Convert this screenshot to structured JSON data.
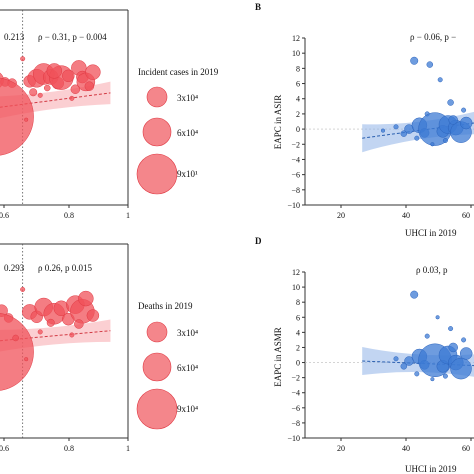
{
  "panel_labels": {
    "B": "B",
    "D": "D"
  },
  "chart_data": [
    {
      "id": "A",
      "type": "scatter",
      "annotation_left": "0.213",
      "annotation_right": "ρ − 0.31, p − 0.004",
      "x_ticks": [
        "0.6",
        "0.8",
        "1"
      ],
      "xlim": [
        0.55,
        1.0
      ],
      "ylim": [
        -20,
        12
      ],
      "vline_x": 0.7,
      "legend": {
        "title": "Incident cases in 2019",
        "items": [
          "3x10⁴",
          "6x10⁴",
          "9x10¹"
        ]
      },
      "trend": {
        "x": [
          0.55,
          0.95
        ],
        "y": [
          -4.6,
          -1.6
        ]
      },
      "points": [
        {
          "x": 0.58,
          "y": -0.5,
          "s": 0.3
        },
        {
          "x": 0.62,
          "y": 0.5,
          "s": 0.6
        },
        {
          "x": 0.6,
          "y": 1.2,
          "s": 0.4
        },
        {
          "x": 0.65,
          "y": 0.2,
          "s": 0.3
        },
        {
          "x": 0.72,
          "y": 0.3,
          "s": 0.4
        },
        {
          "x": 0.74,
          "y": 0.8,
          "s": 0.6
        },
        {
          "x": 0.76,
          "y": 1.5,
          "s": 0.7
        },
        {
          "x": 0.78,
          "y": 1.0,
          "s": 0.5
        },
        {
          "x": 0.8,
          "y": 0.0,
          "s": 0.4
        },
        {
          "x": 0.81,
          "y": 0.9,
          "s": 0.8
        },
        {
          "x": 0.79,
          "y": 2.0,
          "s": 0.5
        },
        {
          "x": 0.83,
          "y": 1.2,
          "s": 0.4
        },
        {
          "x": 0.86,
          "y": 2.5,
          "s": 0.5
        },
        {
          "x": 0.87,
          "y": 1.0,
          "s": 0.4
        },
        {
          "x": 0.88,
          "y": 0.2,
          "s": 0.6
        },
        {
          "x": 0.89,
          "y": -0.5,
          "s": 0.3
        },
        {
          "x": 0.9,
          "y": 1.8,
          "s": 0.5
        },
        {
          "x": 0.85,
          "y": -1.0,
          "s": 0.3
        },
        {
          "x": 0.77,
          "y": -0.8,
          "s": 0.2
        },
        {
          "x": 0.73,
          "y": -1.5,
          "s": 0.25
        },
        {
          "x": 0.7,
          "y": 4.0,
          "s": 0.15
        },
        {
          "x": 0.67,
          "y": 0.0,
          "s": 0.3
        },
        {
          "x": 0.6,
          "y": -3.5,
          "s": 0.2
        },
        {
          "x": 0.62,
          "y": -5.5,
          "s": 2.6
        },
        {
          "x": 0.75,
          "y": -2.0,
          "s": 0.15
        },
        {
          "x": 0.84,
          "y": -2.5,
          "s": 0.15
        },
        {
          "x": 0.71,
          "y": -6.0,
          "s": 0.12
        }
      ]
    },
    {
      "id": "B",
      "type": "scatter",
      "annotation_right": "ρ − 0.06, p −",
      "xlabel": "UHCI in 2019",
      "ylabel": "EAPC in ASIR",
      "x_ticks": [
        "20",
        "40",
        "60"
      ],
      "y_ticks": [
        "12",
        "10",
        "8",
        "6",
        "4",
        "2",
        "0",
        "−2",
        "−4",
        "−6",
        "−8",
        "−10"
      ],
      "xlim": [
        0,
        65
      ],
      "ylim": [
        -10,
        12
      ],
      "trend": {
        "x": [
          22,
          65
        ],
        "y": [
          -1.2,
          0.8
        ]
      },
      "points": [
        {
          "x": 42,
          "y": 9.0,
          "s": 0.25
        },
        {
          "x": 48,
          "y": 8.5,
          "s": 0.2
        },
        {
          "x": 52,
          "y": 6.5,
          "s": 0.15
        },
        {
          "x": 56,
          "y": 3.5,
          "s": 0.2
        },
        {
          "x": 47,
          "y": 2.0,
          "s": 0.15
        },
        {
          "x": 40,
          "y": 0.0,
          "s": 0.3
        },
        {
          "x": 44,
          "y": 0.5,
          "s": 0.5
        },
        {
          "x": 46,
          "y": -0.5,
          "s": 0.3
        },
        {
          "x": 50,
          "y": 0.0,
          "s": 1.1
        },
        {
          "x": 53,
          "y": -0.3,
          "s": 0.4
        },
        {
          "x": 55,
          "y": 0.6,
          "s": 0.6
        },
        {
          "x": 58,
          "y": 0.2,
          "s": 0.5
        },
        {
          "x": 60,
          "y": -0.4,
          "s": 0.7
        },
        {
          "x": 62,
          "y": 0.8,
          "s": 0.4
        },
        {
          "x": 57,
          "y": 1.2,
          "s": 0.3
        },
        {
          "x": 38,
          "y": -0.6,
          "s": 0.2
        },
        {
          "x": 43,
          "y": -1.2,
          "s": 0.15
        },
        {
          "x": 49,
          "y": -2.0,
          "s": 0.12
        },
        {
          "x": 54,
          "y": -1.5,
          "s": 0.15
        },
        {
          "x": 61,
          "y": 2.5,
          "s": 0.15
        },
        {
          "x": 35,
          "y": 0.3,
          "s": 0.15
        },
        {
          "x": 30,
          "y": -0.2,
          "s": 0.12
        }
      ]
    },
    {
      "id": "C",
      "type": "scatter",
      "annotation_left": "0.293",
      "annotation_right": "ρ   0.26, p   0.015",
      "x_ticks": [
        "0.6",
        "0.8",
        "1"
      ],
      "xlim": [
        0.55,
        1.0
      ],
      "ylim": [
        -20,
        12
      ],
      "vline_x": 0.7,
      "legend": {
        "title": "Deaths in 2019",
        "items": [
          "3x10⁴",
          "6x10⁴",
          "9x10⁴"
        ]
      },
      "trend": {
        "x": [
          0.55,
          0.95
        ],
        "y": [
          -4.4,
          -2.3
        ]
      },
      "points": [
        {
          "x": 0.58,
          "y": -0.8,
          "s": 0.3
        },
        {
          "x": 0.61,
          "y": 0.3,
          "s": 0.5
        },
        {
          "x": 0.64,
          "y": 1.0,
          "s": 0.4
        },
        {
          "x": 0.66,
          "y": -0.2,
          "s": 0.3
        },
        {
          "x": 0.72,
          "y": 0.8,
          "s": 0.5
        },
        {
          "x": 0.74,
          "y": 0.0,
          "s": 0.4
        },
        {
          "x": 0.76,
          "y": 1.6,
          "s": 0.6
        },
        {
          "x": 0.79,
          "y": 0.5,
          "s": 0.7
        },
        {
          "x": 0.81,
          "y": 1.4,
          "s": 0.5
        },
        {
          "x": 0.83,
          "y": -0.4,
          "s": 0.4
        },
        {
          "x": 0.85,
          "y": 2.0,
          "s": 0.6
        },
        {
          "x": 0.87,
          "y": 0.9,
          "s": 0.8
        },
        {
          "x": 0.88,
          "y": 3.0,
          "s": 0.5
        },
        {
          "x": 0.9,
          "y": 0.2,
          "s": 0.4
        },
        {
          "x": 0.86,
          "y": -1.2,
          "s": 0.3
        },
        {
          "x": 0.78,
          "y": -1.0,
          "s": 0.25
        },
        {
          "x": 0.7,
          "y": 4.5,
          "s": 0.15
        },
        {
          "x": 0.6,
          "y": 2.0,
          "s": 0.2
        },
        {
          "x": 0.62,
          "y": -5.8,
          "s": 2.6
        },
        {
          "x": 0.75,
          "y": -2.5,
          "s": 0.15
        },
        {
          "x": 0.84,
          "y": -3.0,
          "s": 0.15
        },
        {
          "x": 0.68,
          "y": -3.5,
          "s": 0.2
        },
        {
          "x": 0.71,
          "y": -7.0,
          "s": 0.12
        }
      ]
    },
    {
      "id": "D",
      "type": "scatter",
      "annotation_right": "ρ   0.03, p",
      "xlabel": "UHCI in 2019",
      "ylabel": "EAPC in ASMR",
      "x_ticks": [
        "20",
        "40",
        "60"
      ],
      "y_ticks": [
        "12",
        "10",
        "8",
        "6",
        "4",
        "2",
        "0",
        "−2",
        "−4",
        "−6",
        "−8",
        "−10"
      ],
      "xlim": [
        0,
        65
      ],
      "ylim": [
        -10,
        12
      ],
      "trend": {
        "x": [
          22,
          65
        ],
        "y": [
          0.2,
          -0.4
        ]
      },
      "points": [
        {
          "x": 42,
          "y": 9.0,
          "s": 0.25
        },
        {
          "x": 47,
          "y": 3.5,
          "s": 0.15
        },
        {
          "x": 51,
          "y": 6.0,
          "s": 0.12
        },
        {
          "x": 56,
          "y": 4.5,
          "s": 0.15
        },
        {
          "x": 40,
          "y": 0.2,
          "s": 0.3
        },
        {
          "x": 44,
          "y": 0.8,
          "s": 0.5
        },
        {
          "x": 46,
          "y": -0.3,
          "s": 0.3
        },
        {
          "x": 50,
          "y": 0.3,
          "s": 1.1
        },
        {
          "x": 53,
          "y": -0.5,
          "s": 0.4
        },
        {
          "x": 55,
          "y": 1.0,
          "s": 0.6
        },
        {
          "x": 58,
          "y": 0.0,
          "s": 0.5
        },
        {
          "x": 60,
          "y": -0.8,
          "s": 0.7
        },
        {
          "x": 62,
          "y": 1.2,
          "s": 0.4
        },
        {
          "x": 57,
          "y": 2.0,
          "s": 0.3
        },
        {
          "x": 38,
          "y": -0.5,
          "s": 0.2
        },
        {
          "x": 43,
          "y": -1.5,
          "s": 0.15
        },
        {
          "x": 49,
          "y": -2.2,
          "s": 0.12
        },
        {
          "x": 54,
          "y": -1.8,
          "s": 0.15
        },
        {
          "x": 61,
          "y": 3.0,
          "s": 0.15
        },
        {
          "x": 35,
          "y": 0.5,
          "s": 0.15
        }
      ]
    }
  ],
  "colors": {
    "red": "#f0525a",
    "red_band": "#f7a8ad",
    "blue": "#3d7bd4",
    "blue_band": "#8fb3e8",
    "axis": "#333333",
    "dash": "#555555"
  }
}
